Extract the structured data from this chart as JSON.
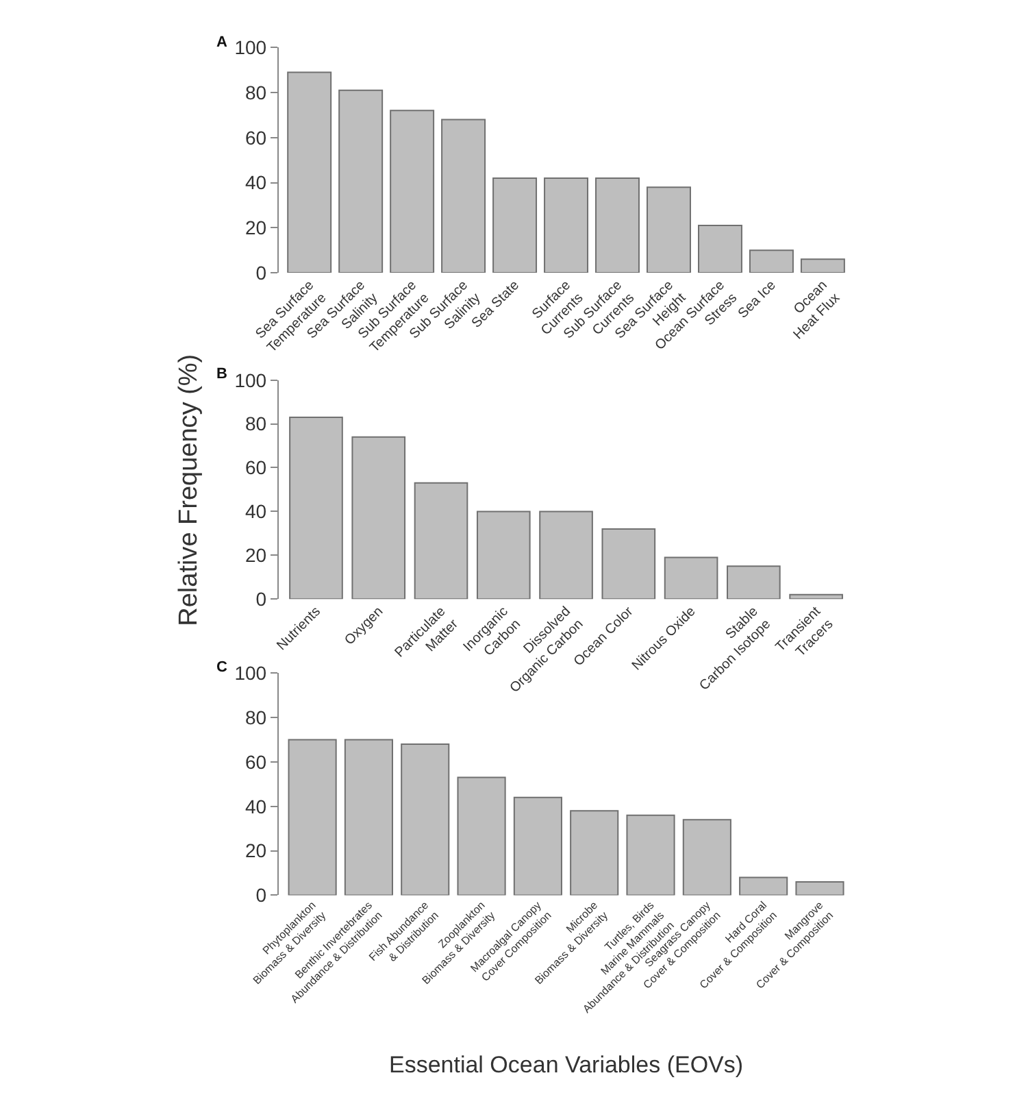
{
  "chart_data": [
    {
      "type": "bar",
      "title": "A",
      "categories": [
        "Sea Surface\nTemperature",
        "Sea Surface\nSalinity",
        "Sub Surface\nTemperature",
        "Sub Surface\nSalinity",
        "Sea State",
        "Surface\nCurrents",
        "Sub Surface\nCurrents",
        "Sea Surface\nHeight",
        "Ocean Surface\nStress",
        "Sea Ice",
        "Ocean\nHeat Flux"
      ],
      "values": [
        89,
        81,
        72,
        68,
        42,
        42,
        42,
        38,
        21,
        10,
        6
      ],
      "color": "#bebebe",
      "ylim": [
        0,
        100
      ],
      "yticks": [
        0,
        20,
        40,
        60,
        80,
        100
      ],
      "grid": false
    },
    {
      "type": "bar",
      "title": "B",
      "ylabel": "Relative Frequency (%)",
      "categories": [
        "Nutrients",
        "Oxygen",
        "Particulate\nMatter",
        "Inorganic\nCarbon",
        "Dissolved\nOrganic Carbon",
        "Ocean Color",
        "Nitrous Oxide",
        "Stable\nCarbon Isotope",
        "Transient\nTracers"
      ],
      "values": [
        83,
        74,
        53,
        40,
        40,
        32,
        19,
        15,
        2
      ],
      "color": "#bebebe",
      "ylim": [
        0,
        100
      ],
      "yticks": [
        0,
        20,
        40,
        60,
        80,
        100
      ],
      "grid": false
    },
    {
      "type": "bar",
      "title": "C",
      "xlabel": "Essential Ocean Variables (EOVs)",
      "categories": [
        "Phytoplankton\nBiomass & Diversity",
        "Benthic Invertebrates\nAbundance & Distribution",
        "Fish Abundance\n& Distribution",
        "Zooplankton\nBiomass & Diversity",
        "Macroalgal Canopy\nCover Composition",
        "Microbe\nBiomass & Diversity",
        "Turtles, Birds\nMarine Mammals\nAbundance & Distribution",
        "Seagrass Canopy\nCover & Composition",
        "Hard Coral\nCover & Composition",
        "Mangrove\nCover & Composition"
      ],
      "values": [
        70,
        70,
        68,
        53,
        44,
        38,
        36,
        34,
        8,
        6
      ],
      "color": "#bebebe",
      "ylim": [
        0,
        100
      ],
      "yticks": [
        0,
        20,
        40,
        60,
        80,
        100
      ],
      "grid": false
    }
  ]
}
